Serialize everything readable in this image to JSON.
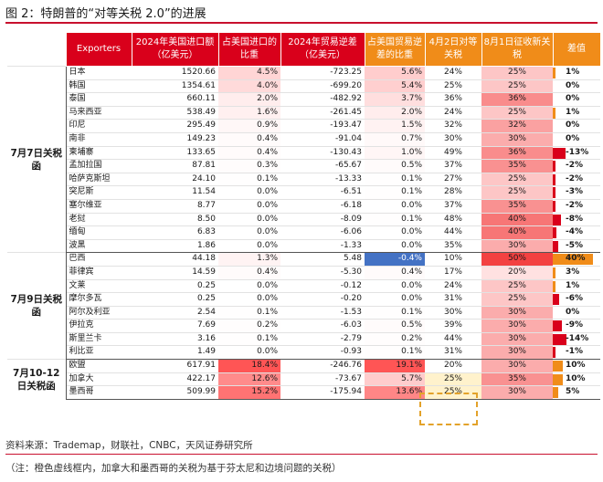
{
  "figure_title": "图 2：特朗普的“对等关税 2.0”的进展",
  "headers": {
    "exporters": "Exporters",
    "imports_2024": "2024年美国进口额（亿美元）",
    "import_share": "占美国进口的比重",
    "deficit_2024": "2024年贸易逆差（亿美元）",
    "deficit_share": "占美国贸易逆差的比重",
    "apr2_rate": "4月2日对等关税",
    "aug1_rate": "8月1日征收新关税",
    "difference": "差值"
  },
  "groups": [
    {
      "label": "7月7日关税函",
      "rows": [
        {
          "country": "日本",
          "imports": "1520.66",
          "imp_share": "4.5%",
          "imp_share_val": 4.5,
          "deficit": "-723.25",
          "def_share": "5.6%",
          "def_share_val": 5.6,
          "apr2": "24%",
          "aug1": "25%",
          "aug1_val": 25,
          "diff": "1%",
          "diff_val": 1
        },
        {
          "country": "韩国",
          "imports": "1354.61",
          "imp_share": "4.0%",
          "imp_share_val": 4.0,
          "deficit": "-699.20",
          "def_share": "5.4%",
          "def_share_val": 5.4,
          "apr2": "25%",
          "aug1": "25%",
          "aug1_val": 25,
          "diff": "0%",
          "diff_val": 0
        },
        {
          "country": "泰国",
          "imports": "660.11",
          "imp_share": "2.0%",
          "imp_share_val": 2.0,
          "deficit": "-482.92",
          "def_share": "3.7%",
          "def_share_val": 3.7,
          "apr2": "36%",
          "aug1": "36%",
          "aug1_val": 36,
          "diff": "0%",
          "diff_val": 0
        },
        {
          "country": "马来西亚",
          "imports": "538.49",
          "imp_share": "1.6%",
          "imp_share_val": 1.6,
          "deficit": "-261.45",
          "def_share": "2.0%",
          "def_share_val": 2.0,
          "apr2": "24%",
          "aug1": "25%",
          "aug1_val": 25,
          "diff": "1%",
          "diff_val": 1
        },
        {
          "country": "印尼",
          "imports": "295.49",
          "imp_share": "0.9%",
          "imp_share_val": 0.9,
          "deficit": "-193.47",
          "def_share": "1.5%",
          "def_share_val": 1.5,
          "apr2": "32%",
          "aug1": "32%",
          "aug1_val": 32,
          "diff": "0%",
          "diff_val": 0
        },
        {
          "country": "南非",
          "imports": "149.23",
          "imp_share": "0.4%",
          "imp_share_val": 0.4,
          "deficit": "-91.04",
          "def_share": "0.7%",
          "def_share_val": 0.7,
          "apr2": "30%",
          "aug1": "30%",
          "aug1_val": 30,
          "diff": "0%",
          "diff_val": 0
        },
        {
          "country": "柬埔寨",
          "imports": "133.65",
          "imp_share": "0.4%",
          "imp_share_val": 0.4,
          "deficit": "-130.43",
          "def_share": "1.0%",
          "def_share_val": 1.0,
          "apr2": "49%",
          "aug1": "36%",
          "aug1_val": 36,
          "diff": "-13%",
          "diff_val": -13
        },
        {
          "country": "孟加拉国",
          "imports": "87.81",
          "imp_share": "0.3%",
          "imp_share_val": 0.3,
          "deficit": "-65.67",
          "def_share": "0.5%",
          "def_share_val": 0.5,
          "apr2": "37%",
          "aug1": "35%",
          "aug1_val": 35,
          "diff": "-2%",
          "diff_val": -2
        },
        {
          "country": "哈萨克斯坦",
          "imports": "24.10",
          "imp_share": "0.1%",
          "imp_share_val": 0.1,
          "deficit": "-13.33",
          "def_share": "0.1%",
          "def_share_val": 0.1,
          "apr2": "27%",
          "aug1": "25%",
          "aug1_val": 25,
          "diff": "-2%",
          "diff_val": -2
        },
        {
          "country": "突尼斯",
          "imports": "11.54",
          "imp_share": "0.0%",
          "imp_share_val": 0.0,
          "deficit": "-6.51",
          "def_share": "0.1%",
          "def_share_val": 0.1,
          "apr2": "28%",
          "aug1": "25%",
          "aug1_val": 25,
          "diff": "-3%",
          "diff_val": -3
        },
        {
          "country": "塞尔维亚",
          "imports": "8.77",
          "imp_share": "0.0%",
          "imp_share_val": 0.0,
          "deficit": "-6.18",
          "def_share": "0.0%",
          "def_share_val": 0.0,
          "apr2": "37%",
          "aug1": "35%",
          "aug1_val": 35,
          "diff": "-2%",
          "diff_val": -2
        },
        {
          "country": "老挝",
          "imports": "8.50",
          "imp_share": "0.0%",
          "imp_share_val": 0.0,
          "deficit": "-8.09",
          "def_share": "0.1%",
          "def_share_val": 0.1,
          "apr2": "48%",
          "aug1": "40%",
          "aug1_val": 40,
          "diff": "-8%",
          "diff_val": -8
        },
        {
          "country": "缅甸",
          "imports": "6.83",
          "imp_share": "0.0%",
          "imp_share_val": 0.0,
          "deficit": "-6.06",
          "def_share": "0.0%",
          "def_share_val": 0.0,
          "apr2": "44%",
          "aug1": "40%",
          "aug1_val": 40,
          "diff": "-4%",
          "diff_val": -4
        },
        {
          "country": "波黑",
          "imports": "1.86",
          "imp_share": "0.0%",
          "imp_share_val": 0.0,
          "deficit": "-1.33",
          "def_share": "0.0%",
          "def_share_val": 0.0,
          "apr2": "35%",
          "aug1": "30%",
          "aug1_val": 30,
          "diff": "-5%",
          "diff_val": -5
        }
      ]
    },
    {
      "label": "7月9日关税函",
      "rows": [
        {
          "country": "巴西",
          "imports": "44.18",
          "imp_share": "1.3%",
          "imp_share_val": 1.3,
          "deficit": "5.48",
          "def_share": "-0.4%",
          "def_share_val": -0.4,
          "apr2": "10%",
          "aug1": "50%",
          "aug1_val": 50,
          "diff": "40%",
          "diff_val": 40
        },
        {
          "country": "菲律宾",
          "imports": "14.59",
          "imp_share": "0.4%",
          "imp_share_val": 0.4,
          "deficit": "-5.30",
          "def_share": "0.4%",
          "def_share_val": 0.4,
          "apr2": "17%",
          "aug1": "20%",
          "aug1_val": 20,
          "diff": "3%",
          "diff_val": 3
        },
        {
          "country": "文莱",
          "imports": "0.25",
          "imp_share": "0.0%",
          "imp_share_val": 0.0,
          "deficit": "-0.12",
          "def_share": "0.0%",
          "def_share_val": 0.0,
          "apr2": "24%",
          "aug1": "25%",
          "aug1_val": 25,
          "diff": "1%",
          "diff_val": 1
        },
        {
          "country": "摩尔多瓦",
          "imports": "0.25",
          "imp_share": "0.0%",
          "imp_share_val": 0.0,
          "deficit": "-0.20",
          "def_share": "0.0%",
          "def_share_val": 0.0,
          "apr2": "31%",
          "aug1": "25%",
          "aug1_val": 25,
          "diff": "-6%",
          "diff_val": -6
        },
        {
          "country": "阿尔及利亚",
          "imports": "2.54",
          "imp_share": "0.1%",
          "imp_share_val": 0.1,
          "deficit": "-1.53",
          "def_share": "0.1%",
          "def_share_val": 0.1,
          "apr2": "30%",
          "aug1": "30%",
          "aug1_val": 30,
          "diff": "0%",
          "diff_val": 0
        },
        {
          "country": "伊拉克",
          "imports": "7.69",
          "imp_share": "0.2%",
          "imp_share_val": 0.2,
          "deficit": "-6.03",
          "def_share": "0.5%",
          "def_share_val": 0.5,
          "apr2": "39%",
          "aug1": "30%",
          "aug1_val": 30,
          "diff": "-9%",
          "diff_val": -9
        },
        {
          "country": "斯里兰卡",
          "imports": "3.16",
          "imp_share": "0.1%",
          "imp_share_val": 0.1,
          "deficit": "-2.79",
          "def_share": "0.2%",
          "def_share_val": 0.2,
          "apr2": "44%",
          "aug1": "30%",
          "aug1_val": 30,
          "diff": "-14%",
          "diff_val": -14
        },
        {
          "country": "利比亚",
          "imports": "1.49",
          "imp_share": "0.0%",
          "imp_share_val": 0.0,
          "deficit": "-0.93",
          "def_share": "0.1%",
          "def_share_val": 0.1,
          "apr2": "31%",
          "aug1": "30%",
          "aug1_val": 30,
          "diff": "-1%",
          "diff_val": -1
        }
      ]
    },
    {
      "label": "7月10-12日关税函",
      "rows": [
        {
          "country": "欧盟",
          "imports": "617.91",
          "imp_share": "18.4%",
          "imp_share_val": 18.4,
          "deficit": "-246.76",
          "def_share": "19.1%",
          "def_share_val": 19.1,
          "apr2": "20%",
          "aug1": "30%",
          "aug1_val": 30,
          "diff": "10%",
          "diff_val": 10
        },
        {
          "country": "加拿大",
          "imports": "422.17",
          "imp_share": "12.6%",
          "imp_share_val": 12.6,
          "deficit": "-73.67",
          "def_share": "5.7%",
          "def_share_val": 5.7,
          "apr2": "25%",
          "aug1": "35%",
          "aug1_val": 35,
          "diff": "10%",
          "diff_val": 10
        },
        {
          "country": "墨西哥",
          "imports": "509.99",
          "imp_share": "15.2%",
          "imp_share_val": 15.2,
          "deficit": "-175.94",
          "def_share": "13.6%",
          "def_share_val": 13.6,
          "apr2": "25%",
          "aug1": "30%",
          "aug1_val": 30,
          "diff": "5%",
          "diff_val": 5
        }
      ]
    }
  ],
  "source": "资料来源：Trademap，财联社，CNBC，天风证券研究所",
  "note": "（注：橙色虚线框内，加拿大和墨西哥的关税为基于芬太尼和边境问题的关税）",
  "colors": {
    "red": "#d9001b",
    "orange": "#f08c19",
    "blue": "#4472c4",
    "highlight": "#fff2cc",
    "dash": "#e3a22a"
  }
}
